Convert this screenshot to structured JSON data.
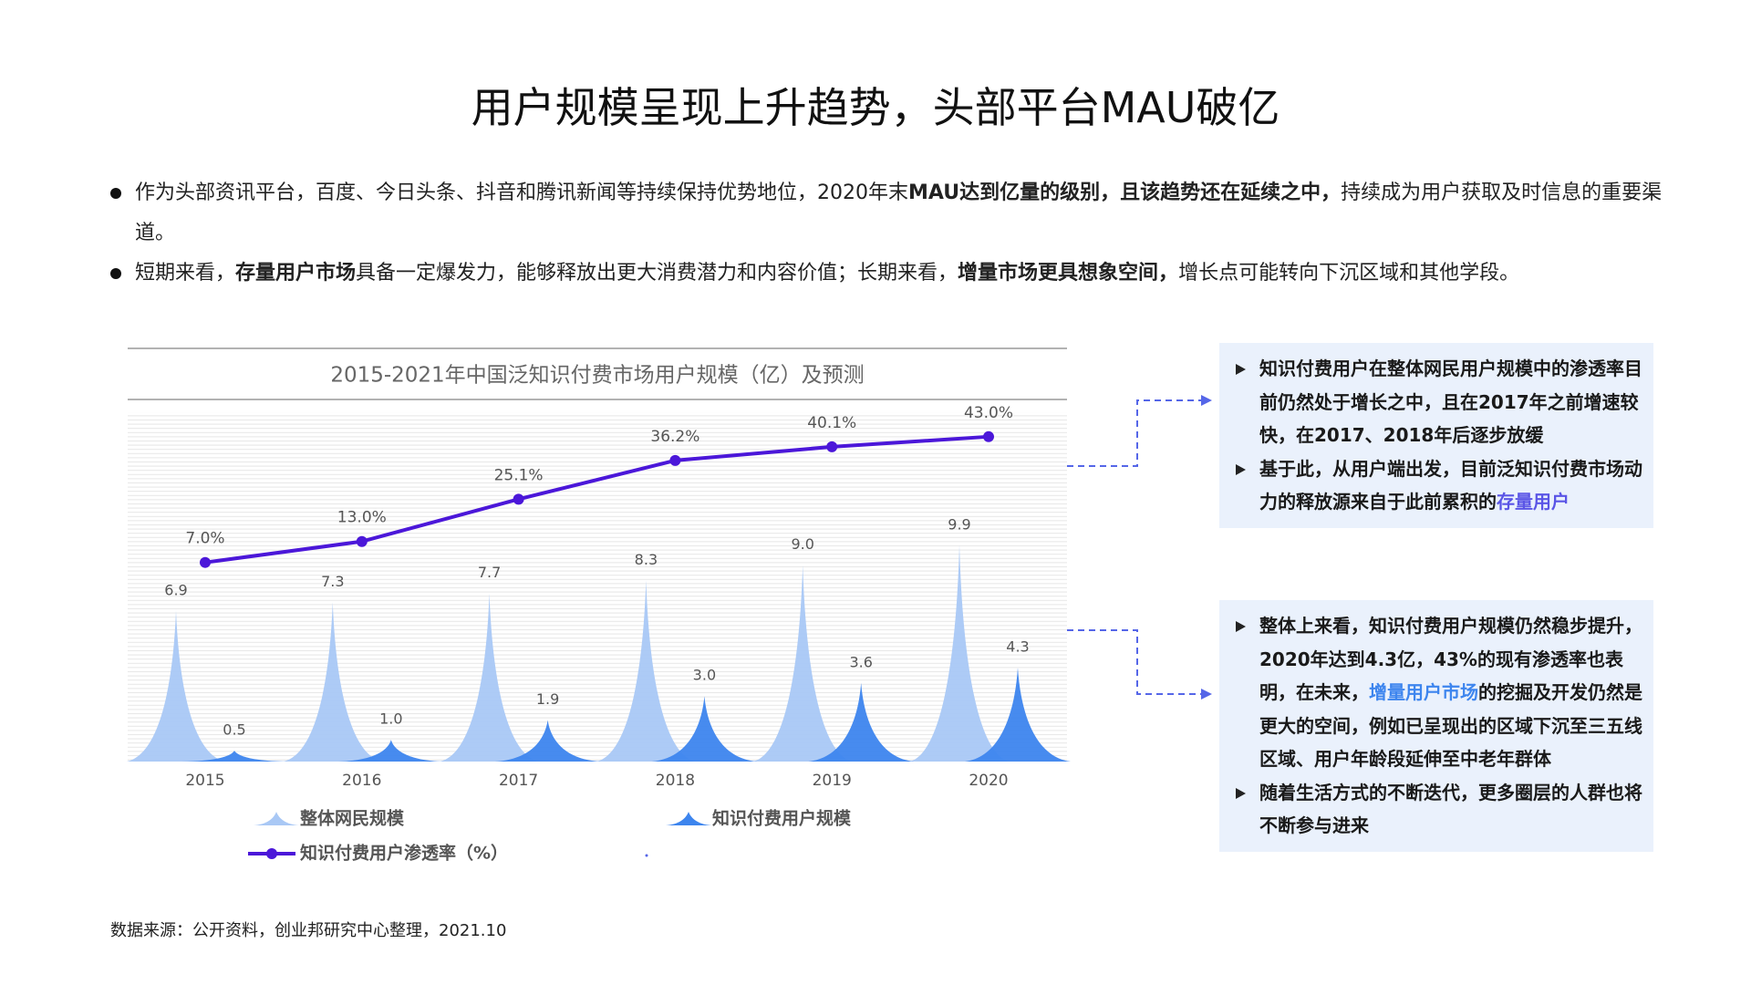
{
  "header": {
    "title": "用户规模呈现上升趋势，头部平台MAU破亿"
  },
  "bullets": [
    [
      {
        "text": "作为头部资讯平台，百度、今日头条、抖音和腾讯新闻等持续保持优势地位，2020年末",
        "bold": false
      },
      {
        "text": "MAU达到亿量的级别，且该趋势还在延续之中，",
        "bold": true
      },
      {
        "text": "持续成为用户获取及时信息的重要渠道。",
        "bold": false
      }
    ],
    [
      {
        "text": "短期来看，",
        "bold": false
      },
      {
        "text": "存量用户市场",
        "bold": true
      },
      {
        "text": "具备一定爆发力，能够释放出更大消费潜力和内容价值；长期来看，",
        "bold": false
      },
      {
        "text": "增量市场更具想象空间，",
        "bold": true
      },
      {
        "text": "增长点可能转向下沉区域和其他学段。",
        "bold": false
      }
    ]
  ],
  "chart_data": {
    "type": "combo",
    "title": "2015-2021年中国泛知识付费市场用户规模（亿）及预测",
    "categories": [
      "2015",
      "2016",
      "2017",
      "2018",
      "2019",
      "2020"
    ],
    "series": [
      {
        "name": "整体网民规模",
        "type": "spike",
        "color": "#a9c8f5",
        "values": [
          6.9,
          7.3,
          7.7,
          8.3,
          9,
          9.9
        ],
        "value_labels": [
          "6.9",
          "7.3",
          "7.7",
          "8.3",
          "9.0",
          "9.9"
        ]
      },
      {
        "name": "知识付费用户规模",
        "type": "spike",
        "color": "#3d85ee",
        "values": [
          0.5,
          1,
          1.9,
          3,
          3.6,
          4.3
        ],
        "value_labels": [
          "0.5",
          "1.0",
          "1.9",
          "3.0",
          "3.6",
          "4.3"
        ]
      },
      {
        "name": "知识付费用户渗透率（%）",
        "type": "line",
        "axis": "y2",
        "color": "#4b17d9",
        "values": [
          7,
          13,
          25.1,
          36.2,
          40.1,
          43
        ],
        "value_labels": [
          "7.0%",
          "13.0%",
          "25.1%",
          "36.2%",
          "40.1%",
          "43.0%"
        ]
      }
    ],
    "ylim": [
      0,
      16
    ],
    "y2lim": [
      -50,
      50
    ]
  },
  "notes": [
    {
      "items": [
        [
          {
            "text": "知识付费用户在整体网民用户规模中的渗透率目前仍然处于增长之中，且在2017年之前增速较快，在2017、2018年后逐步放缓"
          }
        ],
        [
          {
            "text": "基于此，从用户端出发，目前泛知识付费市场动力的释放源来自于此前累积的"
          },
          {
            "text": "存量用户",
            "color": "#5a55e6"
          }
        ]
      ]
    },
    {
      "items": [
        [
          {
            "text": "整体上来看，知识付费用户规模仍然稳步提升，2020年达到4.3亿，43%的现有渗透率也表明，在未来，"
          },
          {
            "text": "增量用户市场",
            "color": "#3d85ee"
          },
          {
            "text": "的挖掘及开发仍然是更大的空间，例如已呈现出的区域下沉至三五线区域、用户年龄段延伸至中老年群体"
          }
        ],
        [
          {
            "text": "随着生活方式的不断迭代，更多圈层的人群也将不断参与进来"
          }
        ]
      ]
    }
  ],
  "footer": {
    "source": "数据来源：公开资料，创业邦研究中心整理，2021.10"
  }
}
